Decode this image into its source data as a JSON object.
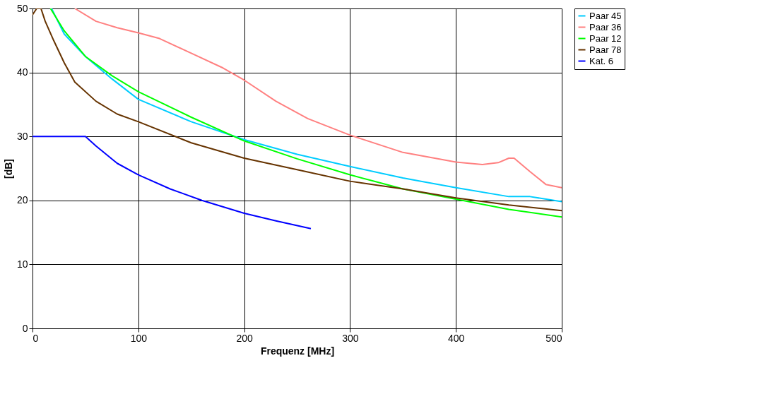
{
  "chart_data": {
    "type": "line",
    "xlabel": "Frequenz [MHz]",
    "ylabel": "[dB]",
    "xlim": [
      0,
      500
    ],
    "ylim": [
      0,
      50
    ],
    "xticks": [
      0,
      100,
      200,
      300,
      400,
      500
    ],
    "yticks": [
      0,
      10,
      20,
      30,
      40,
      50
    ],
    "grid": true,
    "legend": "right",
    "line_style": "solid",
    "marker": "none",
    "series": [
      {
        "name": "Paar 45",
        "color": "#00ccff",
        "x": [
          18,
          30,
          50,
          75,
          100,
          150,
          200,
          250,
          300,
          350,
          400,
          450,
          470,
          500
        ],
        "values": [
          50,
          46,
          42.5,
          39,
          35.8,
          32.3,
          29.5,
          27.2,
          25.3,
          23.5,
          22,
          20.6,
          20.6,
          19.8
        ]
      },
      {
        "name": "Paar 36",
        "color": "#ff8080",
        "x": [
          40,
          60,
          80,
          100,
          120,
          150,
          180,
          200,
          230,
          260,
          300,
          350,
          400,
          425,
          440,
          450,
          455,
          470,
          485,
          500
        ],
        "values": [
          50,
          48,
          47,
          46.2,
          45.3,
          43,
          40.7,
          38.8,
          35.5,
          32.8,
          30.2,
          27.5,
          26,
          25.6,
          25.9,
          26.6,
          26.6,
          24.5,
          22.5,
          22
        ]
      },
      {
        "name": "Paar 12",
        "color": "#00ff00",
        "x": [
          17,
          30,
          50,
          75,
          100,
          150,
          200,
          250,
          300,
          350,
          400,
          450,
          500
        ],
        "values": [
          50,
          46.5,
          42.5,
          39.5,
          37,
          33,
          29.3,
          26.5,
          24,
          21.8,
          20.2,
          18.6,
          17.4
        ]
      },
      {
        "name": "Paar 78",
        "color": "#663300",
        "x": [
          0,
          4,
          8,
          12,
          20,
          30,
          40,
          60,
          80,
          100,
          150,
          200,
          250,
          300,
          350,
          400,
          450,
          500
        ],
        "values": [
          49,
          50,
          50,
          48,
          45,
          41.5,
          38.5,
          35.5,
          33.5,
          32.3,
          29,
          26.6,
          24.8,
          23,
          21.8,
          20.4,
          19.3,
          18.4
        ]
      },
      {
        "name": "Kat. 6",
        "color": "#0000ff",
        "x": [
          0,
          50,
          60,
          80,
          100,
          130,
          160,
          200,
          230,
          263
        ],
        "values": [
          30,
          30,
          28.5,
          25.8,
          24,
          21.8,
          20,
          18,
          16.8,
          15.6
        ]
      }
    ]
  }
}
